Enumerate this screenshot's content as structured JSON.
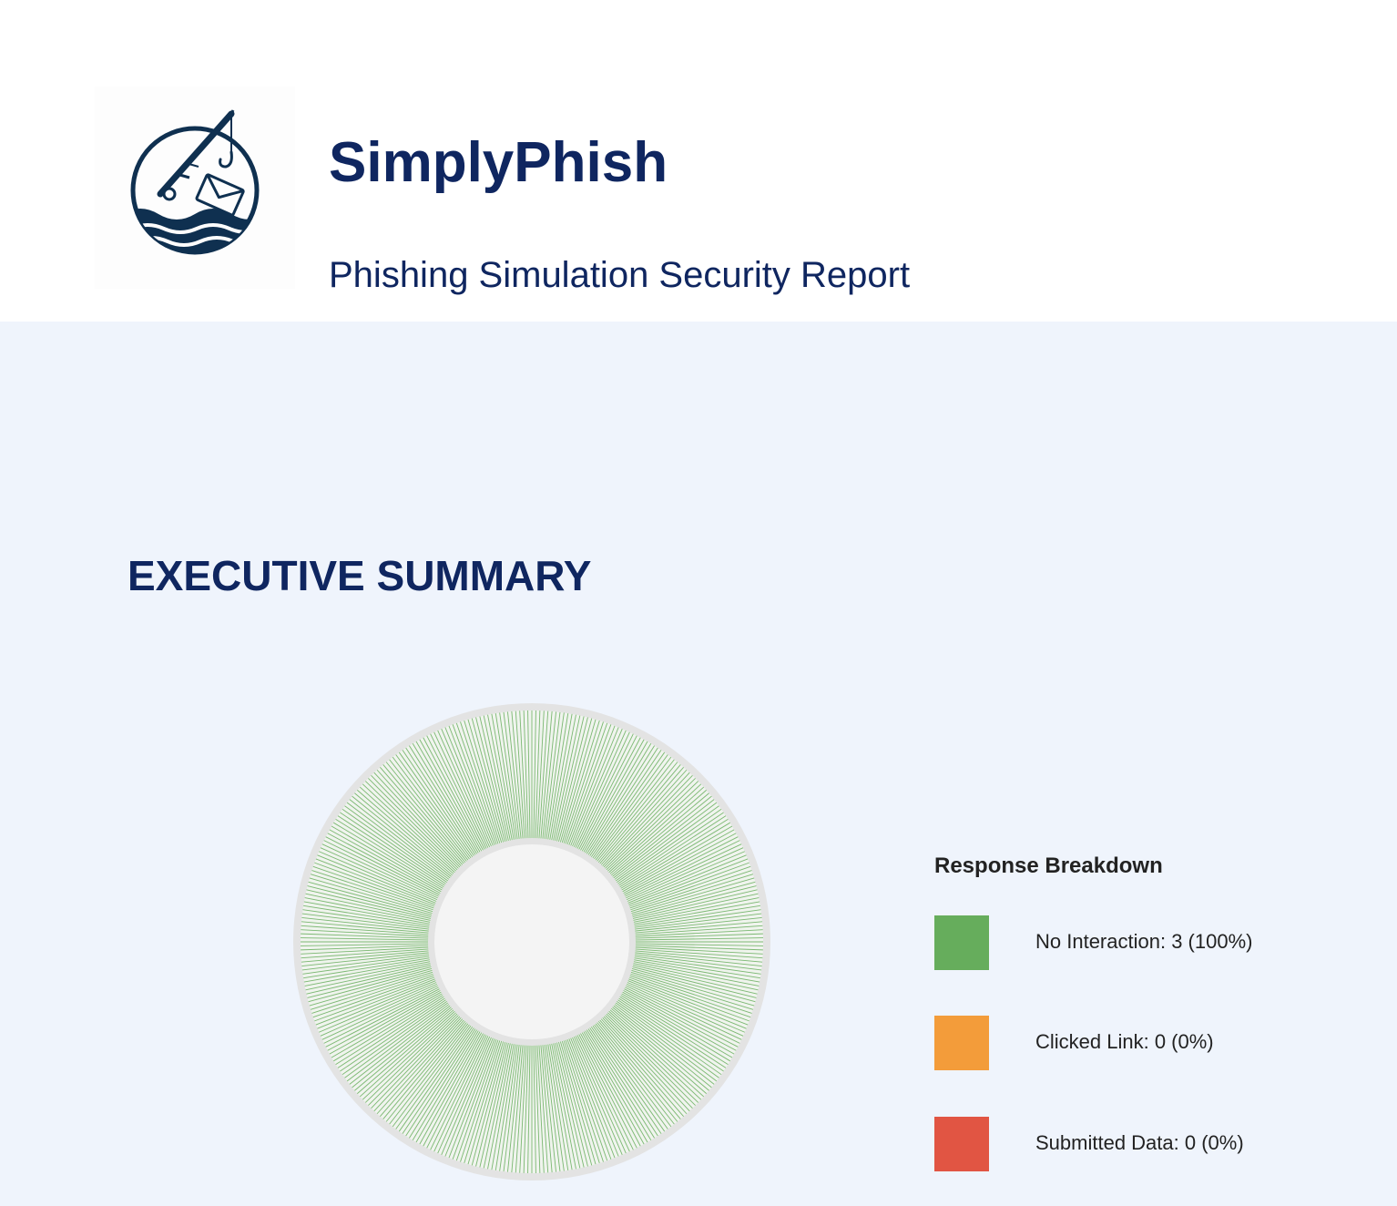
{
  "header": {
    "title": "SimplyPhish",
    "subtitle": "Phishing Simulation Security Report",
    "logo_icon": "fishing-rod-envelope-logo"
  },
  "colors": {
    "brand_navy": "#0f2660",
    "page_background": "#eff4fc",
    "ring_background": "#e3e3e3",
    "center_fill": "#f4f4f4"
  },
  "section": {
    "title": "EXECUTIVE SUMMARY"
  },
  "chart_data": {
    "type": "pie",
    "style": "donut",
    "categories": [
      "No Interaction",
      "Clicked Link",
      "Submitted Data"
    ],
    "values": [
      3,
      0,
      0
    ],
    "percentages": [
      100,
      0,
      0
    ],
    "colors": [
      "#66ad5c",
      "#f39c3a",
      "#e15543"
    ],
    "legend_title": "Response Breakdown",
    "legend_position": "right",
    "legend_labels": [
      "No Interaction: 3 (100%)",
      "Clicked Link: 0 (0%)",
      "Submitted Data: 0 (0%)"
    ]
  }
}
